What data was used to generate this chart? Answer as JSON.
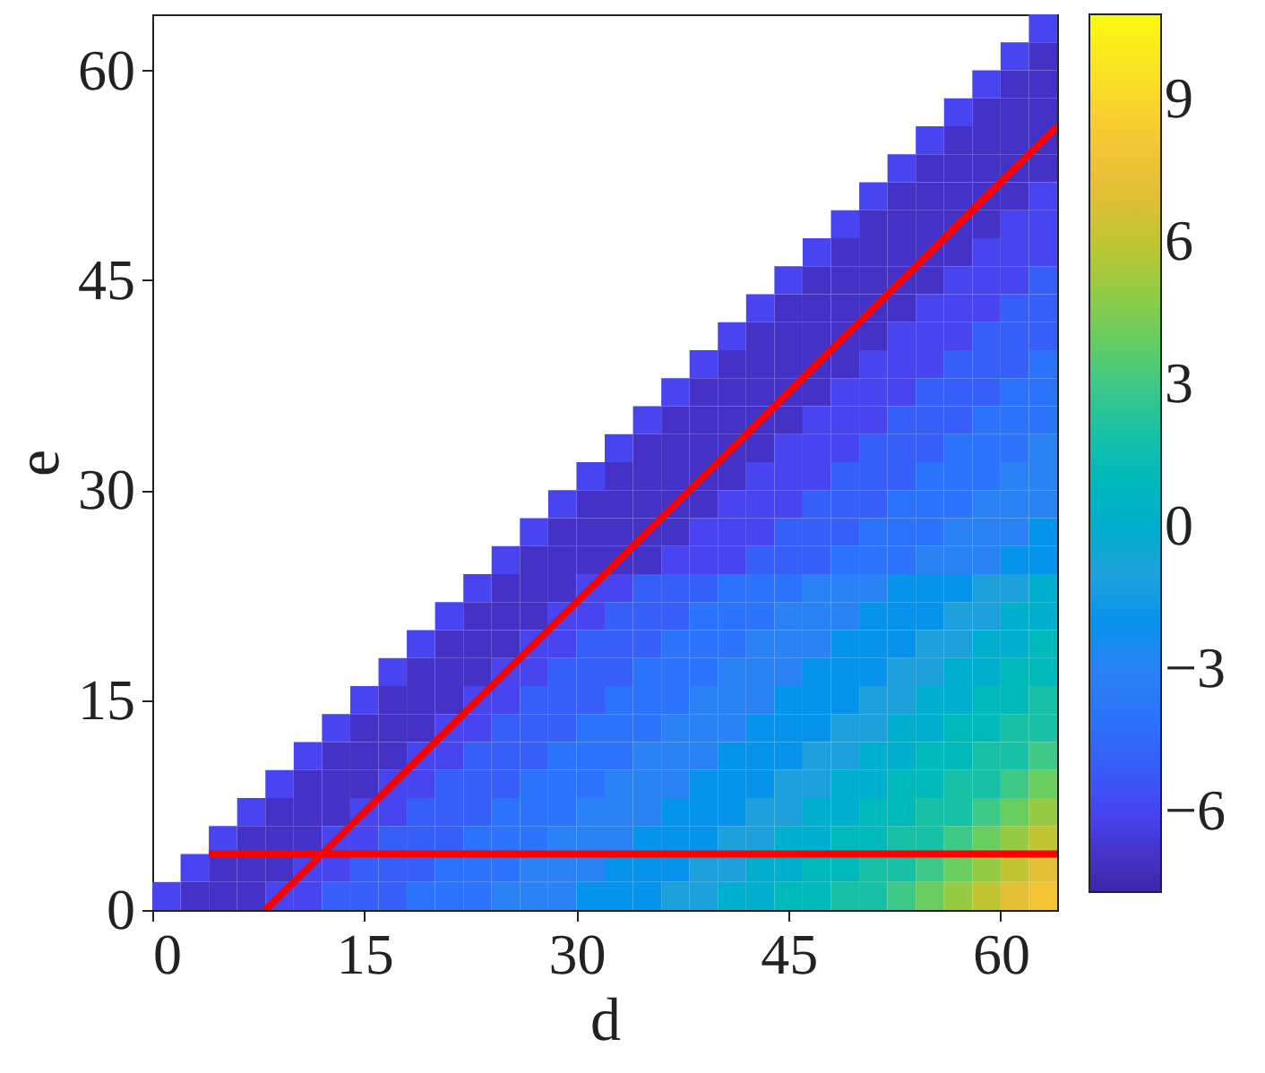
{
  "chart_data": {
    "type": "heatmap",
    "xlabel": "d",
    "ylabel": "e",
    "x": [
      1,
      3,
      5,
      7,
      9,
      11,
      13,
      15,
      17,
      19,
      21,
      23,
      25,
      27,
      29,
      31,
      33,
      35,
      37,
      39,
      41,
      43,
      45,
      47,
      49,
      51,
      53,
      55,
      57,
      59,
      61,
      63
    ],
    "y": [
      63,
      61,
      59,
      57,
      55,
      53,
      51,
      49,
      47,
      45,
      43,
      41,
      39,
      37,
      35,
      33,
      31,
      29,
      27,
      25,
      23,
      21,
      19,
      17,
      15,
      13,
      11,
      9,
      7,
      5,
      3,
      1
    ],
    "cells": [
      [
        null,
        null,
        null,
        null,
        null,
        null,
        null,
        null,
        null,
        null,
        null,
        null,
        null,
        null,
        null,
        null,
        null,
        null,
        null,
        null,
        null,
        null,
        null,
        null,
        null,
        null,
        null,
        null,
        null,
        null,
        null,
        -6
      ],
      [
        null,
        null,
        null,
        null,
        null,
        null,
        null,
        null,
        null,
        null,
        null,
        null,
        null,
        null,
        null,
        null,
        null,
        null,
        null,
        null,
        null,
        null,
        null,
        null,
        null,
        null,
        null,
        null,
        null,
        null,
        -6,
        -7
      ],
      [
        null,
        null,
        null,
        null,
        null,
        null,
        null,
        null,
        null,
        null,
        null,
        null,
        null,
        null,
        null,
        null,
        null,
        null,
        null,
        null,
        null,
        null,
        null,
        null,
        null,
        null,
        null,
        null,
        null,
        -6,
        -7,
        -7
      ],
      [
        null,
        null,
        null,
        null,
        null,
        null,
        null,
        null,
        null,
        null,
        null,
        null,
        null,
        null,
        null,
        null,
        null,
        null,
        null,
        null,
        null,
        null,
        null,
        null,
        null,
        null,
        null,
        null,
        -6,
        -7,
        -7,
        -7
      ],
      [
        null,
        null,
        null,
        null,
        null,
        null,
        null,
        null,
        null,
        null,
        null,
        null,
        null,
        null,
        null,
        null,
        null,
        null,
        null,
        null,
        null,
        null,
        null,
        null,
        null,
        null,
        null,
        -6,
        -7,
        -7,
        -7,
        -7
      ],
      [
        null,
        null,
        null,
        null,
        null,
        null,
        null,
        null,
        null,
        null,
        null,
        null,
        null,
        null,
        null,
        null,
        null,
        null,
        null,
        null,
        null,
        null,
        null,
        null,
        null,
        null,
        -6,
        -7,
        -7,
        -7,
        -7,
        -7
      ],
      [
        null,
        null,
        null,
        null,
        null,
        null,
        null,
        null,
        null,
        null,
        null,
        null,
        null,
        null,
        null,
        null,
        null,
        null,
        null,
        null,
        null,
        null,
        null,
        null,
        null,
        -6,
        -7,
        -7,
        -7,
        -7,
        -7,
        -6
      ],
      [
        null,
        null,
        null,
        null,
        null,
        null,
        null,
        null,
        null,
        null,
        null,
        null,
        null,
        null,
        null,
        null,
        null,
        null,
        null,
        null,
        null,
        null,
        null,
        null,
        -6,
        -7,
        -7,
        -7,
        -7,
        -7,
        -6,
        -6
      ],
      [
        null,
        null,
        null,
        null,
        null,
        null,
        null,
        null,
        null,
        null,
        null,
        null,
        null,
        null,
        null,
        null,
        null,
        null,
        null,
        null,
        null,
        null,
        null,
        -6,
        -7,
        -7,
        -7,
        -7,
        -7,
        -6,
        -6,
        -6
      ],
      [
        null,
        null,
        null,
        null,
        null,
        null,
        null,
        null,
        null,
        null,
        null,
        null,
        null,
        null,
        null,
        null,
        null,
        null,
        null,
        null,
        null,
        null,
        -6,
        -7,
        -7,
        -7,
        -7,
        -7,
        -6,
        -6,
        -6,
        -5
      ],
      [
        null,
        null,
        null,
        null,
        null,
        null,
        null,
        null,
        null,
        null,
        null,
        null,
        null,
        null,
        null,
        null,
        null,
        null,
        null,
        null,
        null,
        -6,
        -7,
        -7,
        -7,
        -7,
        -7,
        -6,
        -6,
        -6,
        -5,
        -5
      ],
      [
        null,
        null,
        null,
        null,
        null,
        null,
        null,
        null,
        null,
        null,
        null,
        null,
        null,
        null,
        null,
        null,
        null,
        null,
        null,
        null,
        -6,
        -7,
        -7,
        -7,
        -7,
        -7,
        -6,
        -6,
        -6,
        -5,
        -5,
        -5
      ],
      [
        null,
        null,
        null,
        null,
        null,
        null,
        null,
        null,
        null,
        null,
        null,
        null,
        null,
        null,
        null,
        null,
        null,
        null,
        null,
        -6,
        -7,
        -7,
        -7,
        -7,
        -7,
        -6,
        -6,
        -6,
        -5,
        -5,
        -5,
        -4
      ],
      [
        null,
        null,
        null,
        null,
        null,
        null,
        null,
        null,
        null,
        null,
        null,
        null,
        null,
        null,
        null,
        null,
        null,
        null,
        -6,
        -7,
        -7,
        -7,
        -7,
        -7,
        -6,
        -6,
        -6,
        -5,
        -5,
        -5,
        -4,
        -4
      ],
      [
        null,
        null,
        null,
        null,
        null,
        null,
        null,
        null,
        null,
        null,
        null,
        null,
        null,
        null,
        null,
        null,
        null,
        -6,
        -7,
        -7,
        -7,
        -7,
        -7,
        -6,
        -6,
        -6,
        -5,
        -5,
        -5,
        -4,
        -4,
        -4
      ],
      [
        null,
        null,
        null,
        null,
        null,
        null,
        null,
        null,
        null,
        null,
        null,
        null,
        null,
        null,
        null,
        null,
        -6,
        -7,
        -7,
        -7,
        -7,
        -7,
        -6,
        -6,
        -6,
        -5,
        -5,
        -5,
        -4,
        -4,
        -4,
        -3
      ],
      [
        null,
        null,
        null,
        null,
        null,
        null,
        null,
        null,
        null,
        null,
        null,
        null,
        null,
        null,
        null,
        -6,
        -7,
        -7,
        -7,
        -7,
        -7,
        -6,
        -6,
        -6,
        -5,
        -5,
        -5,
        -4,
        -4,
        -4,
        -3,
        -3
      ],
      [
        null,
        null,
        null,
        null,
        null,
        null,
        null,
        null,
        null,
        null,
        null,
        null,
        null,
        null,
        -6,
        -7,
        -7,
        -7,
        -7,
        -7,
        -6,
        -6,
        -6,
        -5,
        -5,
        -5,
        -4,
        -4,
        -4,
        -3,
        -3,
        -3
      ],
      [
        null,
        null,
        null,
        null,
        null,
        null,
        null,
        null,
        null,
        null,
        null,
        null,
        null,
        -6,
        -7,
        -7,
        -7,
        -7,
        -7,
        -6,
        -6,
        -6,
        -5,
        -5,
        -5,
        -4,
        -4,
        -4,
        -3,
        -3,
        -3,
        -2
      ],
      [
        null,
        null,
        null,
        null,
        null,
        null,
        null,
        null,
        null,
        null,
        null,
        null,
        -6,
        -7,
        -7,
        -7,
        -7,
        -7,
        -6,
        -6,
        -6,
        -5,
        -5,
        -5,
        -4,
        -4,
        -4,
        -3,
        -3,
        -3,
        -2,
        -2
      ],
      [
        null,
        null,
        null,
        null,
        null,
        null,
        null,
        null,
        null,
        null,
        null,
        -6,
        -7,
        -7,
        -7,
        -6,
        -6,
        -5,
        -5,
        -5,
        -4,
        -4,
        -4,
        -3,
        -3,
        -3,
        -2,
        -2,
        -2,
        -1,
        -1,
        0
      ],
      [
        null,
        null,
        null,
        null,
        null,
        null,
        null,
        null,
        null,
        null,
        -6,
        -7,
        -7,
        -7,
        -6,
        -6,
        -5,
        -5,
        -5,
        -4,
        -4,
        -4,
        -3,
        -3,
        -3,
        -2,
        -2,
        -2,
        -1,
        -1,
        0,
        0
      ],
      [
        null,
        null,
        null,
        null,
        null,
        null,
        null,
        null,
        null,
        -6,
        -7,
        -7,
        -7,
        -6,
        -6,
        -5,
        -5,
        -5,
        -4,
        -4,
        -4,
        -3,
        -3,
        -3,
        -2,
        -2,
        -2,
        -1,
        -1,
        0,
        0,
        1
      ],
      [
        null,
        null,
        null,
        null,
        null,
        null,
        null,
        null,
        -6,
        -7,
        -7,
        -7,
        -6,
        -6,
        -5,
        -5,
        -5,
        -4,
        -4,
        -4,
        -3,
        -3,
        -3,
        -2,
        -2,
        -2,
        -1,
        -1,
        0,
        0,
        1,
        1
      ],
      [
        null,
        null,
        null,
        null,
        null,
        null,
        null,
        -6,
        -7,
        -7,
        -7,
        -6,
        -6,
        -5,
        -5,
        -5,
        -4,
        -4,
        -4,
        -3,
        -3,
        -3,
        -2,
        -2,
        -2,
        -1,
        -1,
        0,
        0,
        1,
        1,
        2
      ],
      [
        null,
        null,
        null,
        null,
        null,
        null,
        -6,
        -7,
        -7,
        -7,
        -6,
        -6,
        -5,
        -5,
        -5,
        -4,
        -4,
        -4,
        -3,
        -3,
        -3,
        -2,
        -2,
        -2,
        -1,
        -1,
        0,
        0,
        1,
        1,
        2,
        2
      ],
      [
        null,
        null,
        null,
        null,
        null,
        -6,
        -7,
        -7,
        -7,
        -6,
        -6,
        -5,
        -5,
        -5,
        -4,
        -4,
        -4,
        -3,
        -3,
        -3,
        -2,
        -2,
        -2,
        -1,
        -1,
        0,
        0,
        1,
        1,
        2,
        2,
        3
      ],
      [
        null,
        null,
        null,
        null,
        -6,
        -7,
        -7,
        -7,
        -6,
        -6,
        -5,
        -5,
        -5,
        -4,
        -4,
        -4,
        -3,
        -3,
        -3,
        -2,
        -2,
        -2,
        -1,
        -1,
        0,
        0,
        1,
        1,
        2,
        2,
        3,
        4
      ],
      [
        null,
        null,
        null,
        -6,
        -7,
        -7,
        -7,
        -6,
        -6,
        -5,
        -5,
        -5,
        -4,
        -4,
        -4,
        -3,
        -3,
        -3,
        -2,
        -2,
        -2,
        -1,
        -1,
        0,
        0,
        1,
        1,
        2,
        2,
        3,
        4,
        5
      ],
      [
        null,
        null,
        -6,
        -7,
        -7,
        -7,
        -6,
        -6,
        -5,
        -5,
        -5,
        -4,
        -4,
        -4,
        -3,
        -3,
        -3,
        -2,
        -2,
        -2,
        -1,
        -1,
        0,
        0,
        1,
        1,
        2,
        2,
        3,
        4,
        5,
        6
      ],
      [
        null,
        -6,
        -7,
        -7,
        -7,
        -6,
        -6,
        -5,
        -5,
        -5,
        -4,
        -4,
        -4,
        -3,
        -3,
        -3,
        -2,
        -2,
        -2,
        -1,
        -1,
        0,
        0,
        1,
        1,
        2,
        2,
        3,
        4,
        5,
        6,
        7
      ],
      [
        -6,
        -7,
        -7,
        -7,
        -6,
        -6,
        -5,
        -5,
        -5,
        -4,
        -4,
        -4,
        -3,
        -3,
        -3,
        -2,
        -2,
        -2,
        -1,
        -1,
        0,
        0,
        1,
        1,
        2,
        2,
        3,
        4,
        5,
        6,
        7,
        8
      ]
    ],
    "series": [
      {
        "type": "line",
        "color": "#ff0000",
        "x": [
          8,
          64
        ],
        "values": [
          0,
          56
        ]
      },
      {
        "type": "line",
        "color": "#ff0000",
        "x": [
          4,
          64
        ],
        "values": [
          4,
          4
        ]
      }
    ],
    "xlim": [
      0,
      64
    ],
    "ylim": [
      0,
      64
    ],
    "xticks": [
      0,
      15,
      30,
      45,
      60
    ],
    "yticks": [
      0,
      15,
      30,
      45,
      60
    ],
    "clim": [
      -7.7,
      10.8
    ],
    "cticks": [
      -6,
      -3,
      0,
      3,
      6,
      9
    ],
    "grid": false
  }
}
